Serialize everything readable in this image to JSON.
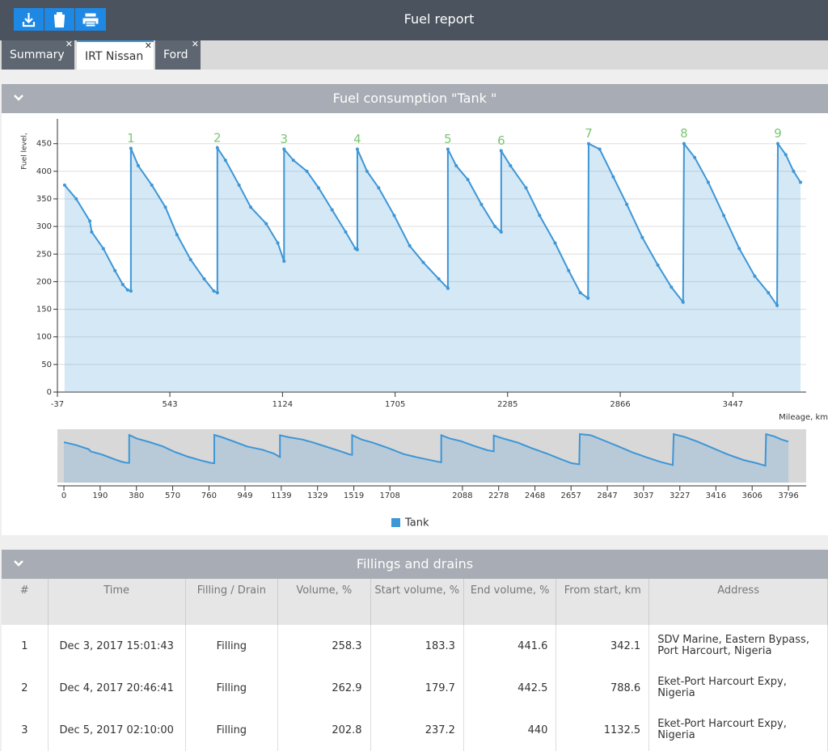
{
  "header": {
    "title": "Fuel report"
  },
  "tabs": [
    "Summary",
    "IRT Nissan",
    "Ford"
  ],
  "chart_section": {
    "title": "Fuel consumption \"Tank \""
  },
  "chart_data": {
    "type": "line",
    "y_label": "Fuel level,",
    "x_label": "Mileage, km",
    "xlim": [
      -37,
      3825
    ],
    "ylim": [
      0,
      495
    ],
    "xticks": [
      -37,
      543,
      1124,
      1705,
      2285,
      2866,
      3447
    ],
    "yticks": [
      0,
      50,
      100,
      150,
      200,
      250,
      300,
      350,
      400,
      450
    ],
    "grid": true,
    "legend": "bottom",
    "x": [
      0,
      60,
      130,
      140,
      200,
      260,
      300,
      325,
      342,
      342,
      380,
      450,
      520,
      580,
      650,
      720,
      770,
      788,
      788,
      830,
      900,
      960,
      1040,
      1100,
      1132,
      1132,
      1180,
      1250,
      1310,
      1380,
      1450,
      1500,
      1510,
      1510,
      1560,
      1620,
      1700,
      1780,
      1850,
      1930,
      1977,
      1977,
      2020,
      2080,
      2150,
      2220,
      2252,
      2252,
      2300,
      2380,
      2450,
      2530,
      2600,
      2660,
      2700,
      2703,
      2760,
      2830,
      2900,
      2980,
      3060,
      3130,
      3190,
      3195,
      3250,
      3320,
      3400,
      3480,
      3560,
      3630,
      3675,
      3679,
      3720,
      3760,
      3796
    ],
    "series": [
      {
        "name": "Tank",
        "color": "#3d96d6",
        "values": [
          375,
          350,
          310,
          290,
          260,
          220,
          195,
          185,
          183,
          441.6,
          410,
          375,
          335,
          285,
          240,
          205,
          183,
          180,
          442.5,
          420,
          375,
          335,
          305,
          270,
          237,
          440,
          420,
          400,
          370,
          330,
          290,
          260,
          258,
          440,
          400,
          370,
          320,
          265,
          235,
          205,
          188,
          440,
          410,
          385,
          340,
          300,
          290,
          437,
          410,
          370,
          320,
          270,
          220,
          180,
          170,
          450,
          440,
          390,
          340,
          280,
          230,
          190,
          163,
          450,
          425,
          380,
          320,
          260,
          210,
          180,
          157,
          450,
          430,
          400,
          380
        ]
      }
    ],
    "annotations": [
      {
        "text": "1",
        "x": 342,
        "y": 441.6
      },
      {
        "text": "2",
        "x": 788,
        "y": 442.5
      },
      {
        "text": "3",
        "x": 1132,
        "y": 440
      },
      {
        "text": "4",
        "x": 1510,
        "y": 440
      },
      {
        "text": "5",
        "x": 1977,
        "y": 440
      },
      {
        "text": "6",
        "x": 2252,
        "y": 437
      },
      {
        "text": "7",
        "x": 2703,
        "y": 450
      },
      {
        "text": "8",
        "x": 3195,
        "y": 450
      },
      {
        "text": "9",
        "x": 3679,
        "y": 450
      }
    ],
    "navigator": {
      "xlim": [
        -34,
        3889
      ],
      "xticks": [
        0,
        190,
        380,
        570,
        760,
        949,
        1139,
        1329,
        1519,
        1708,
        2088,
        2278,
        2468,
        2657,
        2847,
        3037,
        3227,
        3416,
        3606,
        3796
      ]
    }
  },
  "table_section": {
    "title": "Fillings and drains"
  },
  "table": {
    "headers": [
      "#",
      "Time",
      "Filling / Drain",
      "Volume, %",
      "Start volume, %",
      "End volume, %",
      "From start, km",
      "Address"
    ],
    "rows": [
      [
        "1",
        "Dec 3, 2017 15:01:43",
        "Filling",
        "258.3",
        "183.3",
        "441.6",
        "342.1",
        "SDV Marine, Eastern Bypass, Port Harcourt, Nigeria"
      ],
      [
        "2",
        "Dec 4, 2017 20:46:41",
        "Filling",
        "262.9",
        "179.7",
        "442.5",
        "788.6",
        "Eket-Port Harcourt Expy, Nigeria"
      ],
      [
        "3",
        "Dec 5, 2017 02:10:00",
        "Filling",
        "202.8",
        "237.2",
        "440",
        "1132.5",
        "Eket-Port Harcourt Expy, Nigeria"
      ]
    ]
  }
}
